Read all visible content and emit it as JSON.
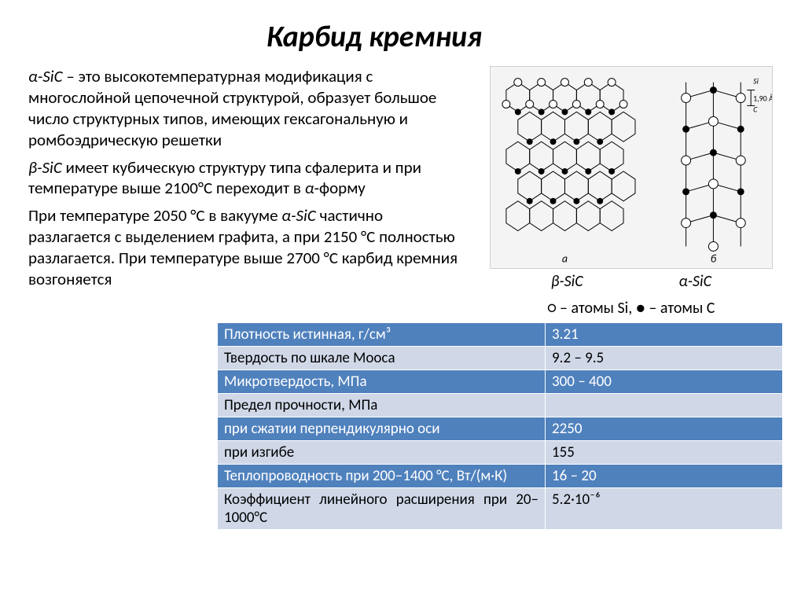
{
  "title": "Карбид кремния",
  "para1_html": "<span class='i'>α-SiC</span> – это высокотемпературная модификация с многослойной цепочечной структурой, образует большое  число структурных типов, имеющих гексагональную и ромбоэдрическую решетки",
  "para2_html": "<span class='i'>β-SiC</span> имеет кубическую структуру типа сфалерита и при температуре выше 2100°С переходит в <span class='i'>α</span>-форму",
  "para3_html": "При температуре 2050 °С в вакууме  <span class='i'>α-SiC</span> частично разлагается с выделением графита, а при 2150 °С полностью разлагается.  При температуре выше 2700 °С карбид кремния возгоняется",
  "fig_placeholder": "кристаллические структуры β-SiC (а) и α-SiC (б)",
  "fig_label_left": "β-SiC",
  "fig_label_right": "α-SiC",
  "legend": "○ – атомы Si, ● – атомы C",
  "table": {
    "rows": [
      {
        "cls": "row-a",
        "k": "Плотность истинная, г/см³",
        "v": "3.21"
      },
      {
        "cls": "row-b",
        "k": "Твердость по шкале Мооса",
        "v": "9.2 – 9.5"
      },
      {
        "cls": "row-a",
        "k": "Микротвердость,   МПа",
        "v": "300 – 400"
      },
      {
        "cls": "row-b",
        "k": "Предел прочности, МПа",
        "v": ""
      },
      {
        "cls": "row-a",
        "k": "при сжатии перпендикулярно оси",
        "v": "2250"
      },
      {
        "cls": "row-b",
        "k": "при  изгибе",
        "v": "155"
      },
      {
        "cls": "row-a",
        "k": "Теплопроводность при 200–1400 °С, Вт/(м·К)",
        "v": "16 – 20"
      },
      {
        "cls": "row-b",
        "k": "Коэффициент линейного расширения при 20–1000°С",
        "v": "5.2·10⁻⁶"
      }
    ]
  },
  "colors": {
    "header_row": "#4f81bd",
    "alt_row": "#d0d8e8",
    "text": "#000000",
    "bg": "#ffffff"
  }
}
